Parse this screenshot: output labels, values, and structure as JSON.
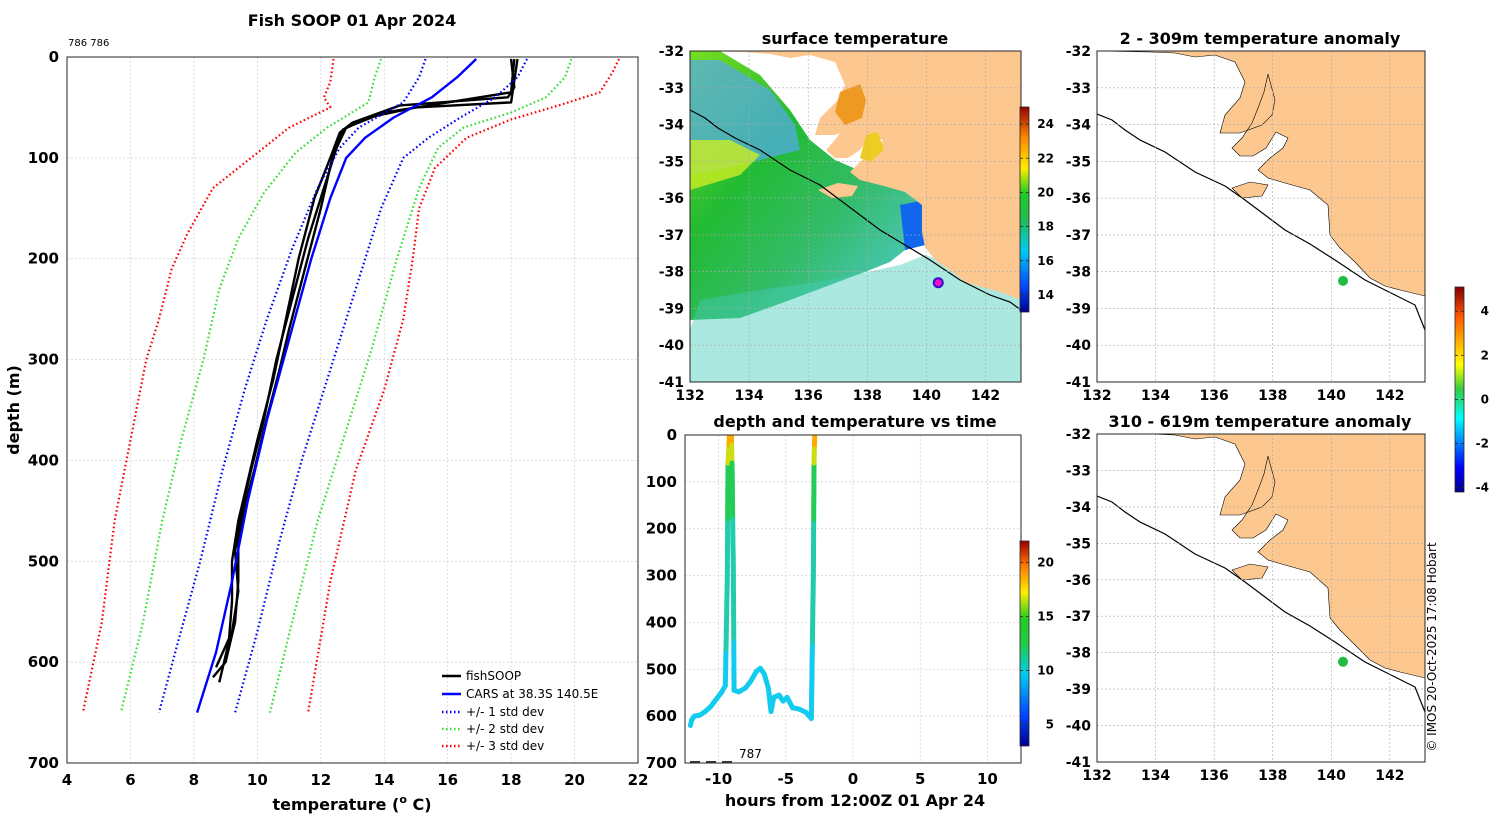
{
  "profile": {
    "title": "Fish SOOP 01 Apr 2024",
    "small_label": "786 786",
    "xlabel": "temperature (",
    "xlabel_sup": "o",
    "xlabel_end": " C)",
    "ylabel": "depth (m)",
    "xlim": [
      4,
      22
    ],
    "ylim": [
      0,
      700
    ],
    "xticks": [
      "4",
      "6",
      "8",
      "10",
      "12",
      "14",
      "16",
      "18",
      "20",
      "22"
    ],
    "yticks": [
      "0",
      "100",
      "200",
      "300",
      "400",
      "500",
      "600",
      "700"
    ],
    "legend": [
      "fishSOOP",
      "CARS at 38.3S 140.5E",
      "+/- 1 std dev",
      "+/- 2 std dev",
      "+/- 3 std dev"
    ],
    "colors": {
      "fish": "#000000",
      "cars": "#0000ff",
      "sd1": "#0000ff",
      "sd2": "#33dd33",
      "sd3": "#ff0000"
    }
  },
  "chart_data": [
    {
      "type": "line",
      "id": "profile",
      "title": "Fish SOOP 01 Apr 2024",
      "xlabel": "temperature (o C)",
      "ylabel": "depth (m)",
      "xlim": [
        4,
        22
      ],
      "ylim": [
        700,
        0
      ],
      "series": [
        {
          "name": "fishSOOP",
          "style": "solid",
          "color": "#000000",
          "points": [
            [
              18.0,
              2
            ],
            [
              18.1,
              30
            ],
            [
              17.9,
              40
            ],
            [
              14.5,
              48
            ],
            [
              13.0,
              65
            ],
            [
              12.6,
              75
            ],
            [
              12.3,
              100
            ],
            [
              11.8,
              140
            ],
            [
              11.3,
              200
            ],
            [
              10.9,
              260
            ],
            [
              10.5,
              320
            ],
            [
              10.0,
              380
            ],
            [
              9.7,
              420
            ],
            [
              9.4,
              460
            ],
            [
              9.2,
              500
            ],
            [
              9.2,
              540
            ],
            [
              9.1,
              580
            ],
            [
              8.8,
              620
            ]
          ]
        },
        {
          "name": "fishSOOP",
          "style": "solid",
          "color": "#000000",
          "points": [
            [
              18.1,
              2
            ],
            [
              18.0,
              35
            ],
            [
              16.0,
              45
            ],
            [
              14.0,
              55
            ],
            [
              12.8,
              70
            ],
            [
              12.5,
              90
            ],
            [
              12.1,
              130
            ],
            [
              11.6,
              180
            ],
            [
              11.1,
              240
            ],
            [
              10.6,
              300
            ],
            [
              10.2,
              360
            ],
            [
              9.8,
              410
            ],
            [
              9.5,
              450
            ],
            [
              9.3,
              490
            ],
            [
              9.4,
              530
            ],
            [
              9.2,
              570
            ],
            [
              8.7,
              605
            ]
          ]
        },
        {
          "name": "fishSOOP",
          "style": "solid",
          "color": "#000000",
          "points": [
            [
              18.2,
              2
            ],
            [
              18.0,
              45
            ],
            [
              15.0,
              50
            ],
            [
              13.5,
              60
            ],
            [
              12.7,
              72
            ],
            [
              12.4,
              95
            ],
            [
              12.0,
              150
            ],
            [
              11.5,
              210
            ],
            [
              11.0,
              270
            ],
            [
              10.7,
              310
            ],
            [
              10.2,
              370
            ],
            [
              9.9,
              410
            ],
            [
              9.6,
              445
            ],
            [
              9.4,
              480
            ],
            [
              9.4,
              520
            ],
            [
              9.3,
              560
            ],
            [
              9.0,
              600
            ],
            [
              8.6,
              615
            ]
          ]
        },
        {
          "name": "CARS at 38.3S 140.5E",
          "style": "solid",
          "color": "#0000ff",
          "points": [
            [
              16.9,
              2
            ],
            [
              16.3,
              20
            ],
            [
              15.5,
              40
            ],
            [
              14.3,
              60
            ],
            [
              13.4,
              80
            ],
            [
              12.8,
              100
            ],
            [
              12.3,
              140
            ],
            [
              11.7,
              200
            ],
            [
              11.0,
              280
            ],
            [
              10.3,
              360
            ],
            [
              9.7,
              440
            ],
            [
              9.2,
              520
            ],
            [
              8.7,
              590
            ],
            [
              8.1,
              650
            ]
          ]
        },
        {
          "name": "+/- 1 std dev",
          "style": "dotted",
          "color": "#0000ff",
          "points": [
            [
              15.3,
              2
            ],
            [
              15.1,
              20
            ],
            [
              14.6,
              45
            ],
            [
              13.2,
              70
            ],
            [
              12.6,
              90
            ],
            [
              11.9,
              130
            ],
            [
              11.1,
              190
            ],
            [
              10.3,
              260
            ],
            [
              9.6,
              330
            ],
            [
              8.9,
              410
            ],
            [
              8.2,
              500
            ],
            [
              7.5,
              580
            ],
            [
              6.9,
              650
            ]
          ]
        },
        {
          "name": "+/- 1 std dev",
          "style": "dotted",
          "color": "#0000ff",
          "points": [
            [
              18.5,
              2
            ],
            [
              18.2,
              20
            ],
            [
              17.5,
              40
            ],
            [
              16.4,
              60
            ],
            [
              15.4,
              80
            ],
            [
              14.6,
              100
            ],
            [
              13.9,
              150
            ],
            [
              13.1,
              230
            ],
            [
              12.3,
              310
            ],
            [
              11.4,
              400
            ],
            [
              10.7,
              480
            ],
            [
              10.0,
              570
            ],
            [
              9.3,
              650
            ]
          ]
        },
        {
          "name": "+/- 2 std dev",
          "style": "dotted",
          "color": "#33dd33",
          "points": [
            [
              13.9,
              2
            ],
            [
              13.7,
              20
            ],
            [
              13.5,
              45
            ],
            [
              12.2,
              70
            ],
            [
              11.2,
              95
            ],
            [
              10.2,
              135
            ],
            [
              9.4,
              180
            ],
            [
              8.8,
              230
            ],
            [
              8.3,
              300
            ],
            [
              7.6,
              380
            ],
            [
              7.0,
              460
            ],
            [
              6.4,
              560
            ],
            [
              5.7,
              650
            ]
          ]
        },
        {
          "name": "+/- 2 std dev",
          "style": "dotted",
          "color": "#33dd33",
          "points": [
            [
              19.9,
              2
            ],
            [
              19.7,
              20
            ],
            [
              19.1,
              40
            ],
            [
              18.0,
              55
            ],
            [
              16.5,
              70
            ],
            [
              15.7,
              90
            ],
            [
              15.1,
              130
            ],
            [
              14.4,
              200
            ],
            [
              13.6,
              290
            ],
            [
              12.7,
              380
            ],
            [
              11.9,
              460
            ],
            [
              11.1,
              560
            ],
            [
              10.4,
              650
            ]
          ]
        },
        {
          "name": "+/- 3 std dev",
          "style": "dotted",
          "color": "#ff0000",
          "points": [
            [
              12.4,
              2
            ],
            [
              12.3,
              25
            ],
            [
              12.1,
              40
            ],
            [
              12.3,
              50
            ],
            [
              11.0,
              70
            ],
            [
              9.8,
              100
            ],
            [
              8.6,
              130
            ],
            [
              7.8,
              175
            ],
            [
              7.3,
              210
            ],
            [
              6.9,
              260
            ],
            [
              6.5,
              300
            ],
            [
              6.0,
              380
            ],
            [
              5.5,
              460
            ],
            [
              5.1,
              560
            ],
            [
              4.5,
              650
            ]
          ]
        },
        {
          "name": "+/- 3 std dev",
          "style": "dotted",
          "color": "#ff0000",
          "points": [
            [
              21.4,
              2
            ],
            [
              21.2,
              15
            ],
            [
              20.8,
              35
            ],
            [
              19.5,
              48
            ],
            [
              18.0,
              62
            ],
            [
              16.6,
              80
            ],
            [
              15.6,
              110
            ],
            [
              15.1,
              150
            ],
            [
              14.9,
              200
            ],
            [
              14.6,
              260
            ],
            [
              14.0,
              330
            ],
            [
              13.1,
              410
            ],
            [
              12.3,
              520
            ],
            [
              11.6,
              650
            ]
          ]
        }
      ]
    },
    {
      "type": "map",
      "id": "sst",
      "title": "surface temperature",
      "xlim": [
        132,
        143.2
      ],
      "ylim": [
        -41,
        -32
      ],
      "xticks": [
        132,
        134,
        136,
        138,
        140,
        142
      ],
      "yticks": [
        -32,
        -33,
        -34,
        -35,
        -36,
        -37,
        -38,
        -39,
        -40,
        -41
      ],
      "colorbar": {
        "ticks": [
          14,
          16,
          18,
          20,
          22,
          24
        ],
        "range": [
          13,
          25
        ]
      },
      "marker": {
        "lon": 140.4,
        "lat": -38.3
      }
    },
    {
      "type": "line",
      "id": "depth_time",
      "title": "depth and temperature vs time",
      "xlabel": "hours from 12:00Z 01 Apr 24",
      "xlim": [
        -12.5,
        12.5
      ],
      "ylim": [
        700,
        0
      ],
      "xticks": [
        -10,
        -5,
        0,
        5,
        10
      ],
      "yticks": [
        0,
        100,
        200,
        300,
        400,
        500,
        600,
        700
      ],
      "annotation": "787",
      "colorbar": {
        "ticks": [
          5,
          10,
          15,
          20
        ],
        "range": [
          3,
          22
        ]
      },
      "points": [
        [
          -12.1,
          620
        ],
        [
          -12.0,
          608
        ],
        [
          -11.8,
          600
        ],
        [
          -11.4,
          598
        ],
        [
          -11.0,
          590
        ],
        [
          -10.6,
          580
        ],
        [
          -10.2,
          565
        ],
        [
          -9.8,
          550
        ],
        [
          -9.5,
          535
        ],
        [
          -9.35,
          300
        ],
        [
          -9.3,
          60
        ],
        [
          -9.2,
          2
        ],
        [
          -9.05,
          2
        ],
        [
          -9.0,
          60
        ],
        [
          -8.9,
          300
        ],
        [
          -8.85,
          545
        ],
        [
          -8.5,
          548
        ],
        [
          -8.0,
          540
        ],
        [
          -7.6,
          525
        ],
        [
          -7.2,
          505
        ],
        [
          -6.9,
          498
        ],
        [
          -6.6,
          510
        ],
        [
          -6.3,
          540
        ],
        [
          -6.1,
          590
        ],
        [
          -5.9,
          560
        ],
        [
          -5.5,
          555
        ],
        [
          -5.2,
          568
        ],
        [
          -4.9,
          560
        ],
        [
          -4.5,
          582
        ],
        [
          -4.0,
          585
        ],
        [
          -3.5,
          592
        ],
        [
          -3.1,
          605
        ],
        [
          -2.95,
          300
        ],
        [
          -2.9,
          60
        ],
        [
          -2.85,
          2
        ]
      ]
    },
    {
      "type": "map",
      "id": "anom_shallow",
      "title": "2 - 309m temperature anomaly",
      "xlim": [
        132,
        143.2
      ],
      "ylim": [
        -41,
        -32
      ],
      "xticks": [
        132,
        134,
        136,
        138,
        140,
        142
      ],
      "yticks": [
        -32,
        -33,
        -34,
        -35,
        -36,
        -37,
        -38,
        -39,
        -40,
        -41
      ],
      "colorbar": {
        "ticks": [
          -4,
          -2,
          0,
          2,
          4
        ],
        "range": [
          -4.2,
          5.1
        ]
      },
      "marker": {
        "lon": 140.4,
        "lat": -38.25
      }
    },
    {
      "type": "map",
      "id": "anom_deep",
      "title": "310 - 619m temperature anomaly",
      "xlim": [
        132,
        143.2
      ],
      "ylim": [
        -41,
        -32
      ],
      "xticks": [
        132,
        134,
        136,
        138,
        140,
        142
      ],
      "yticks": [
        -32,
        -33,
        -34,
        -35,
        -36,
        -37,
        -38,
        -39,
        -40,
        -41
      ],
      "marker": {
        "lon": 140.4,
        "lat": -38.25
      }
    }
  ],
  "maps": {
    "sst_title": "surface temperature",
    "anom1_title": "2 - 309m temperature anomaly",
    "anom2_title": "310 - 619m temperature anomaly",
    "lat_ticks": [
      "-32",
      "-33",
      "-34",
      "-35",
      "-36",
      "-37",
      "-38",
      "-39",
      "-40",
      "-41"
    ],
    "lon_ticks": [
      "132",
      "134",
      "136",
      "138",
      "140",
      "142"
    ],
    "sst_cbar_ticks": [
      "14",
      "16",
      "18",
      "20",
      "22",
      "24"
    ],
    "anom_cbar_ticks": [
      "-4",
      "-2",
      "0",
      "2",
      "4"
    ],
    "land_color": "#fdc890"
  },
  "time_plot": {
    "title": "depth and temperature vs time",
    "xlabel": "hours from 12:00Z 01 Apr 24",
    "xticks": [
      "-10",
      "-5",
      "0",
      "5",
      "10"
    ],
    "yticks": [
      "0",
      "100",
      "200",
      "300",
      "400",
      "500",
      "600",
      "700"
    ],
    "annotation": "787",
    "cbar_ticks": [
      "5",
      "10",
      "15",
      "20"
    ]
  },
  "credit": "© IMOS 20-Oct-2025 17:08 Hobart"
}
